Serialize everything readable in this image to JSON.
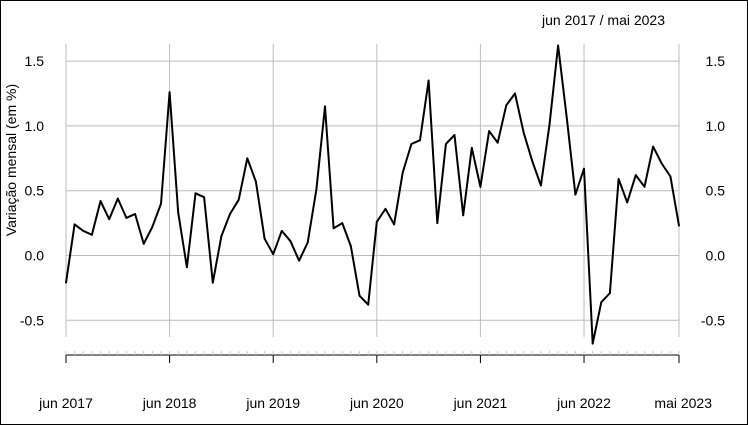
{
  "chart_data": {
    "type": "line",
    "subtitle": "jun 2017 / mai 2023",
    "ylabel": "Variação mensal (em %)",
    "ylim": [
      -0.75,
      1.65
    ],
    "yticks": [
      1.5,
      1.0,
      0.5,
      0.0,
      -0.5
    ],
    "ytick_labels": [
      "1.5",
      "1.0",
      "0.5",
      "0.0",
      "-0.5"
    ],
    "xtick_labels": [
      "jun 2017",
      "jun 2018",
      "jun 2019",
      "jun 2020",
      "jun 2021",
      "jun 2022",
      "mai 2023"
    ],
    "xtick_index": [
      0,
      12,
      24,
      36,
      48,
      60,
      71
    ],
    "grid": true,
    "line_color": "#000000",
    "grid_color": "#bebebe",
    "x": [
      "2017-06",
      "2017-07",
      "2017-08",
      "2017-09",
      "2017-10",
      "2017-11",
      "2017-12",
      "2018-01",
      "2018-02",
      "2018-03",
      "2018-04",
      "2018-05",
      "2018-06",
      "2018-07",
      "2018-08",
      "2018-09",
      "2018-10",
      "2018-11",
      "2018-12",
      "2019-01",
      "2019-02",
      "2019-03",
      "2019-04",
      "2019-05",
      "2019-06",
      "2019-07",
      "2019-08",
      "2019-09",
      "2019-10",
      "2019-11",
      "2019-12",
      "2020-01",
      "2020-02",
      "2020-03",
      "2020-04",
      "2020-05",
      "2020-06",
      "2020-07",
      "2020-08",
      "2020-09",
      "2020-10",
      "2020-11",
      "2020-12",
      "2021-01",
      "2021-02",
      "2021-03",
      "2021-04",
      "2021-05",
      "2021-06",
      "2021-07",
      "2021-08",
      "2021-09",
      "2021-10",
      "2021-11",
      "2021-12",
      "2022-01",
      "2022-02",
      "2022-03",
      "2022-04",
      "2022-05",
      "2022-06",
      "2022-07",
      "2022-08",
      "2022-09",
      "2022-10",
      "2022-11",
      "2022-12",
      "2023-01",
      "2023-02",
      "2023-03",
      "2023-04",
      "2023-05"
    ],
    "series": [
      {
        "values": [
          -0.21,
          0.24,
          0.19,
          0.16,
          0.42,
          0.28,
          0.44,
          0.29,
          0.32,
          0.09,
          0.22,
          0.4,
          1.26,
          0.33,
          -0.09,
          0.48,
          0.45,
          -0.21,
          0.15,
          0.32,
          0.43,
          0.75,
          0.57,
          0.13,
          0.01,
          0.19,
          0.11,
          -0.04,
          0.1,
          0.51,
          1.15,
          0.21,
          0.25,
          0.07,
          -0.31,
          -0.38,
          0.26,
          0.36,
          0.24,
          0.64,
          0.86,
          0.89,
          1.35,
          0.25,
          0.86,
          0.93,
          0.31,
          0.83,
          0.53,
          0.96,
          0.87,
          1.16,
          1.25,
          0.95,
          0.73,
          0.54,
          1.01,
          1.62,
          1.06,
          0.47,
          0.67,
          -0.68,
          -0.36,
          -0.29,
          0.59,
          0.41,
          0.62,
          0.53,
          0.84,
          0.71,
          0.61,
          0.23
        ]
      }
    ]
  }
}
